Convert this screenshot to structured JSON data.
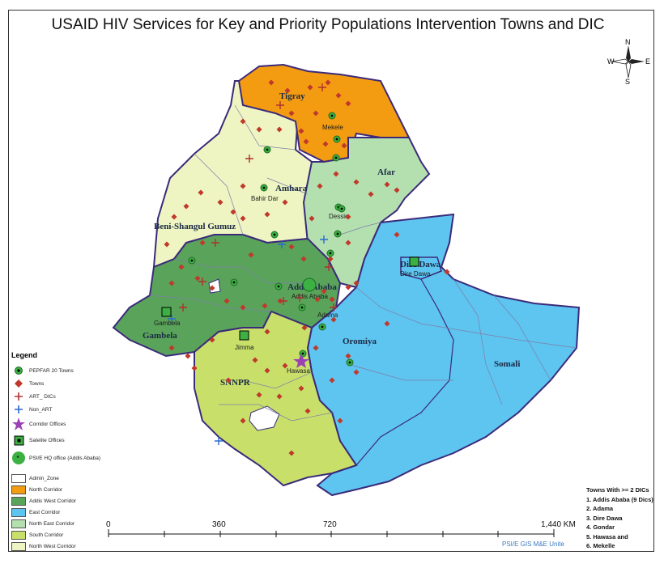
{
  "title": "USAID HIV Services for Key and Priority Populations Intervention Towns and DIC",
  "regions": [
    {
      "name": "Tigray",
      "corridor": "North Corridor"
    },
    {
      "name": "Afar",
      "corridor": "North East Corridor"
    },
    {
      "name": "Amhara",
      "corridor": "North West Corridor"
    },
    {
      "name": "Beni-Shangul Gumuz",
      "corridor": "North West Corridor"
    },
    {
      "name": "Addis Ababa",
      "corridor": "Addis West Corridor"
    },
    {
      "name": "Gambela",
      "corridor": "Addis West Corridor"
    },
    {
      "name": "Oromiya",
      "corridor": "East Corridor"
    },
    {
      "name": "Somali",
      "corridor": "East Corridor"
    },
    {
      "name": "SNNPR",
      "corridor": "South Corridor"
    },
    {
      "name": "Dire Dawa",
      "corridor": "East Corridor"
    }
  ],
  "town_labels": [
    "Mekele",
    "Bahir Dar",
    "Dessie",
    "Addis Ababa",
    "Adama",
    "Dire Dawa",
    "Gambela",
    "Jimma",
    "Hawasa"
  ],
  "legend": {
    "heading": "Legend",
    "symbols": [
      {
        "label": "PEPFAR 20 Towns",
        "icon": "pepfar-town-icon"
      },
      {
        "label": "Towns",
        "icon": "town-icon"
      },
      {
        "label": "ART_ DICs",
        "icon": "art-dic-icon"
      },
      {
        "label": "Non_ART",
        "icon": "non-art-icon"
      },
      {
        "label": "Corridor Offices",
        "icon": "corridor-office-icon"
      },
      {
        "label": "Satelite Offices",
        "icon": "satellite-office-icon"
      },
      {
        "label": "PSI/E HQ office (Addis Ababa)",
        "icon": "hq-office-icon"
      }
    ],
    "zones": [
      {
        "label": "Admin_Zone",
        "color": "#ffffff"
      },
      {
        "label": "North Corridor",
        "color": "#f39c12"
      },
      {
        "label": "Addis West Corridor",
        "color": "#5aa35a"
      },
      {
        "label": "East Corridor",
        "color": "#5ec4f0"
      },
      {
        "label": "North East Corridor",
        "color": "#b4e0b0"
      },
      {
        "label": "South Corridor",
        "color": "#c8e06a"
      },
      {
        "label": "North West Corridor",
        "color": "#eef5c2"
      }
    ]
  },
  "scale": {
    "ticks": [
      "0",
      "360",
      "720",
      "1,440 KM"
    ]
  },
  "towns_box": {
    "heading": "Towns With >= 2 DICs",
    "items": [
      "1. Addis Ababa (9 Dics)",
      "2. Adama",
      "3. Dire Dawa",
      "4. Gondar",
      "5. Hawasa and",
      "6. Mekelle"
    ]
  },
  "credit": "PSI/E GIS M&E Unite",
  "compass": {
    "n": "N",
    "s": "S",
    "e": "E",
    "w": "W"
  }
}
